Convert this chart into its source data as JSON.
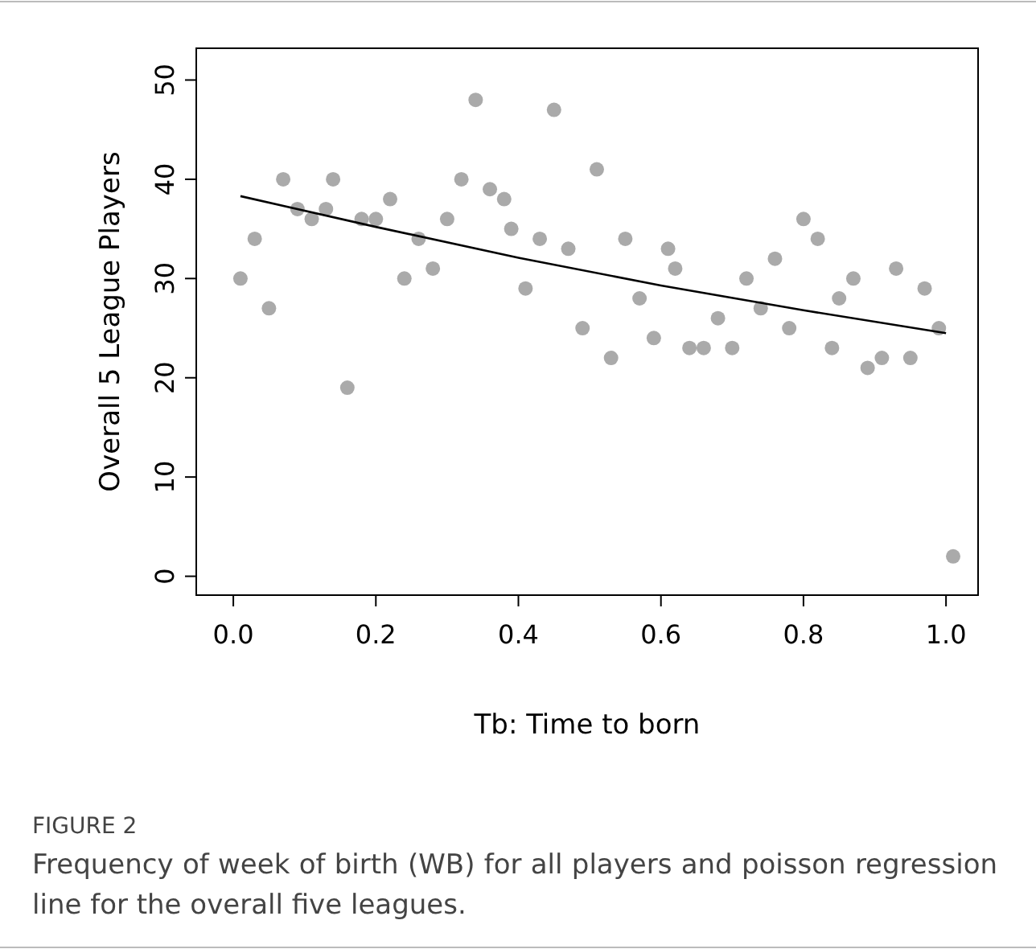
{
  "chart_data": {
    "type": "scatter",
    "xlabel": "Tb: Time to born",
    "ylabel": "Overall 5 League Players",
    "annotations": [
      "FIGURE 2",
      "Frequency of week of birth (WB) for all players and poisson regression line for the overall five leagues."
    ],
    "marker": "circle",
    "xlim": [
      -0.052,
      1.045
    ],
    "ylim": [
      -1.9,
      53.2
    ],
    "xticks": [
      {
        "value": 0,
        "label": "0.0"
      },
      {
        "value": 0.2,
        "label": "0.2"
      },
      {
        "value": 0.4,
        "label": "0.4"
      },
      {
        "value": 0.6,
        "label": "0.6"
      },
      {
        "value": 0.8,
        "label": "0.8"
      },
      {
        "value": 1,
        "label": "1.0"
      }
    ],
    "yticks": [
      0,
      10,
      20,
      30,
      40,
      50
    ],
    "series": [
      {
        "color": "#aaaaaa",
        "x": [
          0.01,
          0.03,
          0.05,
          0.07,
          0.09,
          0.11,
          0.13,
          0.14,
          0.16,
          0.18,
          0.2,
          0.22,
          0.24,
          0.26,
          0.28,
          0.3,
          0.32,
          0.34,
          0.36,
          0.38,
          0.39,
          0.41,
          0.43,
          0.45,
          0.47,
          0.49,
          0.51,
          0.53,
          0.55,
          0.57,
          0.59,
          0.61,
          0.62,
          0.64,
          0.66,
          0.68,
          0.7,
          0.72,
          0.74,
          0.76,
          0.78,
          0.8,
          0.82,
          0.84,
          0.85,
          0.87,
          0.89,
          0.91,
          0.93,
          0.95,
          0.97,
          0.99,
          1.01
        ],
        "values": [
          30,
          34,
          27,
          40,
          37,
          36,
          37,
          40,
          19,
          36,
          36,
          38,
          30,
          34,
          31,
          36,
          40,
          48,
          39,
          38,
          35,
          29,
          34,
          47,
          33,
          25,
          41,
          22,
          34,
          28,
          24,
          33,
          31,
          23,
          23,
          26,
          23,
          30,
          27,
          32,
          25,
          36,
          34,
          23,
          28,
          30,
          21,
          22,
          31,
          22,
          29,
          25,
          2
        ]
      },
      {
        "type": "line",
        "marker": "none",
        "color": "#000000",
        "x": [
          0.01,
          0.2,
          0.4,
          0.6,
          0.8,
          1.0
        ],
        "values": [
          38.3,
          35.2,
          32.1,
          29.3,
          26.8,
          24.5
        ]
      }
    ]
  }
}
